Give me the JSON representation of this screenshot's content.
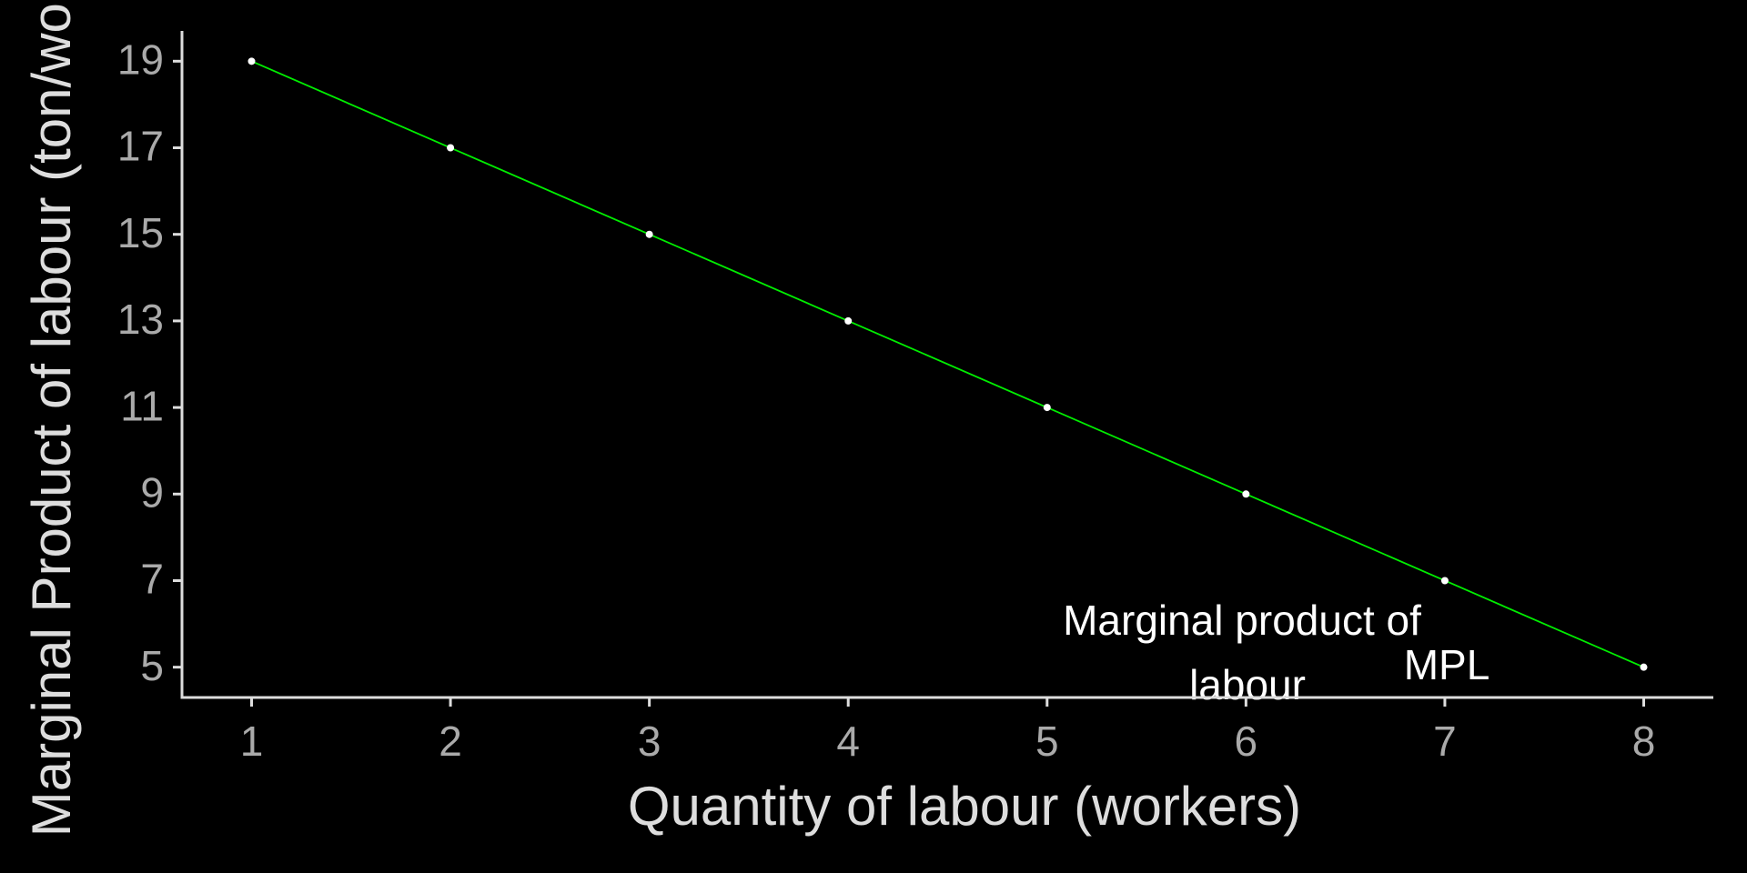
{
  "chart_data": {
    "type": "line",
    "x_label": "Quantity of labour (workers)",
    "y_label": "Marginal Product of labour (ton/worker)",
    "annotation": [
      "Marginal product of",
      "labour"
    ],
    "series": [
      {
        "name": "MPL",
        "color": "#00ee00",
        "x": [
          1,
          2,
          3,
          4,
          5,
          6,
          7,
          8
        ],
        "values": [
          19,
          17,
          15,
          13,
          11,
          9,
          7,
          5
        ]
      }
    ],
    "xlim": [
      0.65,
      8.35
    ],
    "ylim": [
      4.3,
      19.7
    ],
    "xticks": [
      1,
      2,
      3,
      4,
      5,
      6,
      7,
      8
    ],
    "yticks": [
      5,
      7,
      9,
      11,
      13,
      15,
      17,
      19
    ],
    "grid": false
  }
}
